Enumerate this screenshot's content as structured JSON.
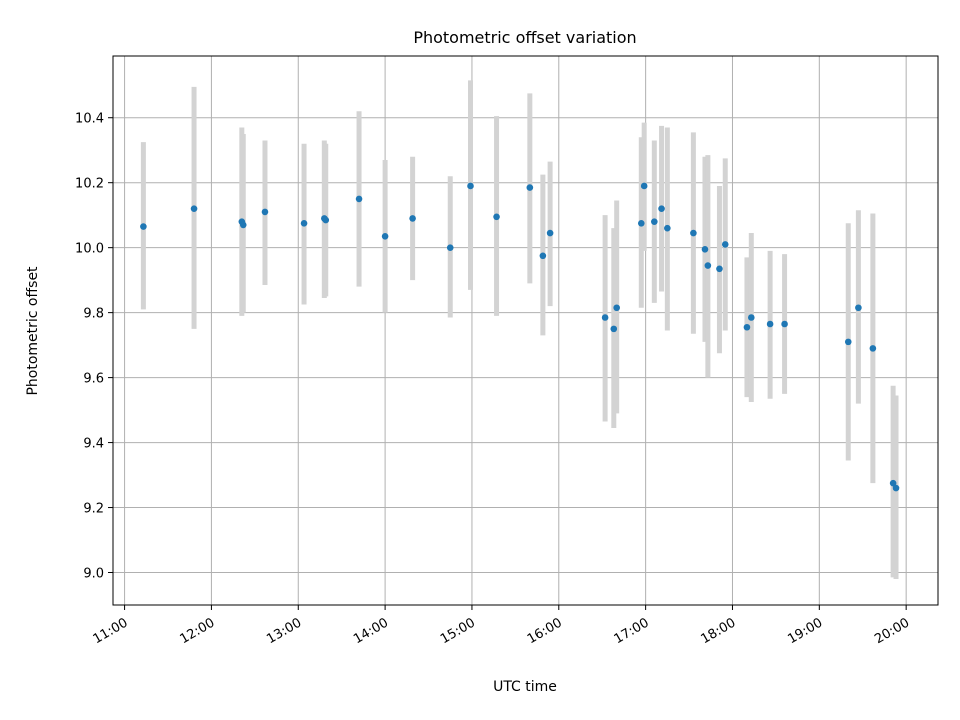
{
  "chart_data": {
    "type": "scatter",
    "title": "Photometric offset variation",
    "xlabel": "UTC time",
    "ylabel": "Photometric offset",
    "xlim": [
      "10:52",
      "20:22"
    ],
    "ylim": [
      8.9,
      10.59
    ],
    "x_ticks": [
      "11:00",
      "12:00",
      "13:00",
      "14:00",
      "15:00",
      "16:00",
      "17:00",
      "18:00",
      "19:00",
      "20:00"
    ],
    "y_ticks": [
      "9.0",
      "9.2",
      "9.4",
      "9.6",
      "9.8",
      "10.0",
      "10.2",
      "10.4"
    ],
    "grid": true,
    "point_color": "#1f77b4",
    "errorbar_color": "#d3d3d3",
    "points": [
      {
        "x": "11:13",
        "y": 10.065,
        "err_low": 9.81,
        "err_high": 10.325
      },
      {
        "x": "11:48",
        "y": 10.12,
        "err_low": 9.75,
        "err_high": 10.495
      },
      {
        "x": "12:21",
        "y": 10.08,
        "err_low": 9.79,
        "err_high": 10.37
      },
      {
        "x": "12:22",
        "y": 10.07,
        "err_low": 9.8,
        "err_high": 10.35
      },
      {
        "x": "12:37",
        "y": 10.11,
        "err_low": 9.885,
        "err_high": 10.33
      },
      {
        "x": "13:04",
        "y": 10.075,
        "err_low": 9.825,
        "err_high": 10.32
      },
      {
        "x": "13:18",
        "y": 10.09,
        "err_low": 9.845,
        "err_high": 10.33
      },
      {
        "x": "13:19",
        "y": 10.085,
        "err_low": 9.85,
        "err_high": 10.32
      },
      {
        "x": "13:42",
        "y": 10.15,
        "err_low": 9.88,
        "err_high": 10.42
      },
      {
        "x": "14:00",
        "y": 10.035,
        "err_low": 9.8,
        "err_high": 10.27
      },
      {
        "x": "14:19",
        "y": 10.09,
        "err_low": 9.9,
        "err_high": 10.28
      },
      {
        "x": "14:45",
        "y": 10.0,
        "err_low": 9.785,
        "err_high": 10.22
      },
      {
        "x": "14:59",
        "y": 10.19,
        "err_low": 9.87,
        "err_high": 10.515
      },
      {
        "x": "15:17",
        "y": 10.095,
        "err_low": 9.79,
        "err_high": 10.405
      },
      {
        "x": "15:40",
        "y": 10.185,
        "err_low": 9.89,
        "err_high": 10.475
      },
      {
        "x": "15:49",
        "y": 9.975,
        "err_low": 9.73,
        "err_high": 10.225
      },
      {
        "x": "15:54",
        "y": 10.045,
        "err_low": 9.82,
        "err_high": 10.265
      },
      {
        "x": "16:32",
        "y": 9.785,
        "err_low": 9.465,
        "err_high": 10.1
      },
      {
        "x": "16:38",
        "y": 9.75,
        "err_low": 9.445,
        "err_high": 10.06
      },
      {
        "x": "16:40",
        "y": 9.815,
        "err_low": 9.49,
        "err_high": 10.145
      },
      {
        "x": "16:57",
        "y": 10.075,
        "err_low": 9.815,
        "err_high": 10.34
      },
      {
        "x": "16:59",
        "y": 10.19,
        "err_low": 9.99,
        "err_high": 10.385
      },
      {
        "x": "17:06",
        "y": 10.08,
        "err_low": 9.83,
        "err_high": 10.33
      },
      {
        "x": "17:11",
        "y": 10.12,
        "err_low": 9.865,
        "err_high": 10.375
      },
      {
        "x": "17:15",
        "y": 10.06,
        "err_low": 9.745,
        "err_high": 10.37
      },
      {
        "x": "17:33",
        "y": 10.045,
        "err_low": 9.735,
        "err_high": 10.355
      },
      {
        "x": "17:41",
        "y": 9.995,
        "err_low": 9.71,
        "err_high": 10.28
      },
      {
        "x": "17:43",
        "y": 9.945,
        "err_low": 9.6,
        "err_high": 10.285
      },
      {
        "x": "17:51",
        "y": 9.935,
        "err_low": 9.675,
        "err_high": 10.19
      },
      {
        "x": "17:55",
        "y": 10.01,
        "err_low": 9.745,
        "err_high": 10.275
      },
      {
        "x": "18:10",
        "y": 9.755,
        "err_low": 9.54,
        "err_high": 9.97
      },
      {
        "x": "18:13",
        "y": 9.785,
        "err_low": 9.525,
        "err_high": 10.045
      },
      {
        "x": "18:26",
        "y": 9.765,
        "err_low": 9.535,
        "err_high": 9.99
      },
      {
        "x": "18:36",
        "y": 9.765,
        "err_low": 9.55,
        "err_high": 9.98
      },
      {
        "x": "19:20",
        "y": 9.71,
        "err_low": 9.345,
        "err_high": 10.075
      },
      {
        "x": "19:27",
        "y": 9.815,
        "err_low": 9.52,
        "err_high": 10.115
      },
      {
        "x": "19:37",
        "y": 9.69,
        "err_low": 9.275,
        "err_high": 10.105
      },
      {
        "x": "19:51",
        "y": 9.275,
        "err_low": 8.985,
        "err_high": 9.575
      },
      {
        "x": "19:53",
        "y": 9.26,
        "err_low": 8.98,
        "err_high": 9.545
      }
    ]
  }
}
